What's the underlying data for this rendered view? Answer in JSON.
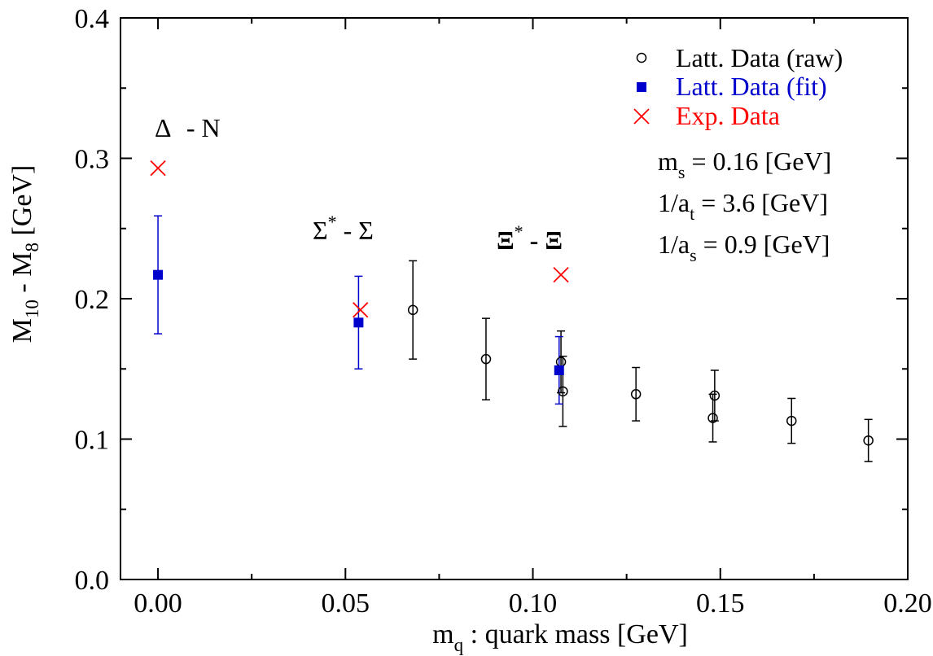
{
  "chart_data": {
    "type": "scatter",
    "xlabel": {
      "main": "m",
      "sub": "q",
      "rest": " : quark mass [GeV]"
    },
    "ylabel": {
      "p1": "M",
      "s1": "10",
      "p2": " - M",
      "s2": "8",
      "p3": "  [GeV]"
    },
    "xlim": [
      -0.01,
      0.2
    ],
    "ylim": [
      0.0,
      0.4
    ],
    "x_ticks": [
      0.0,
      0.05,
      0.1,
      0.15,
      0.2
    ],
    "x_tick_labels": [
      "0.00",
      "0.05",
      "0.10",
      "0.15",
      "0.20"
    ],
    "y_ticks": [
      0.0,
      0.1,
      0.2,
      0.3,
      0.4
    ],
    "y_tick_labels": [
      "0.0",
      "0.1",
      "0.2",
      "0.3",
      "0.4"
    ],
    "grid": false,
    "legend_position": "top-right",
    "series": [
      {
        "name": "Latt. Data (raw)",
        "marker": "open-circle",
        "color": "#000000",
        "points": [
          {
            "x": 0.068,
            "y": 0.192,
            "err": 0.035
          },
          {
            "x": 0.0875,
            "y": 0.157,
            "err": 0.029
          },
          {
            "x": 0.1075,
            "y": 0.155,
            "err": 0.022
          },
          {
            "x": 0.108,
            "y": 0.134,
            "err": 0.025
          },
          {
            "x": 0.1275,
            "y": 0.132,
            "err": 0.019
          },
          {
            "x": 0.148,
            "y": 0.115,
            "err": 0.017
          },
          {
            "x": 0.1485,
            "y": 0.131,
            "err": 0.018
          },
          {
            "x": 0.169,
            "y": 0.113,
            "err": 0.016
          },
          {
            "x": 0.1895,
            "y": 0.099,
            "err": 0.015
          }
        ]
      },
      {
        "name": "Latt. Data (fit)",
        "marker": "filled-square",
        "color": "#0000cc",
        "points": [
          {
            "x": 0.0,
            "y": 0.217,
            "err": 0.042
          },
          {
            "x": 0.0535,
            "y": 0.183,
            "err": 0.033
          },
          {
            "x": 0.107,
            "y": 0.149,
            "err": 0.024
          }
        ]
      },
      {
        "name": "Exp. Data",
        "marker": "cross",
        "color": "#ff0000",
        "points": [
          {
            "x": 0.0,
            "y": 0.293
          },
          {
            "x": 0.054,
            "y": 0.192
          },
          {
            "x": 0.1075,
            "y": 0.217
          }
        ]
      }
    ],
    "annotations": {
      "delta_n": {
        "a": "Δ",
        "b": " - N"
      },
      "sigma": {
        "a": "Σ",
        "sup": "*",
        "b": " - Σ"
      },
      "xi": {
        "a": "Ξ",
        "sup": "*",
        "b": " - Ξ"
      },
      "params": [
        {
          "pre": "m",
          "sub": "s",
          "post": " = 0.16 [GeV]"
        },
        {
          "pre": "1/a",
          "sub": "t",
          "post": " = 3.6 [GeV]"
        },
        {
          "pre": "1/a",
          "sub": "s",
          "post": " = 0.9 [GeV]"
        }
      ]
    }
  }
}
